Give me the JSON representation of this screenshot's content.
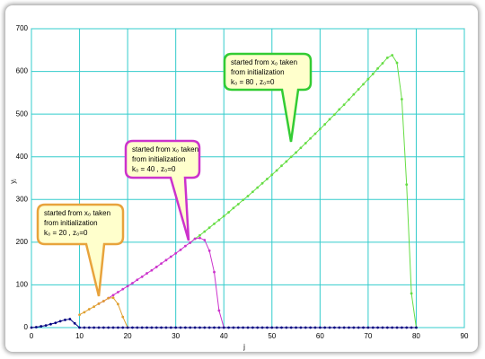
{
  "chart_data": {
    "type": "line",
    "xlabel": "j",
    "ylabel": "yⱼ",
    "xlim": [
      0,
      90
    ],
    "xticks": [
      0,
      10,
      20,
      30,
      40,
      50,
      60,
      70,
      80,
      90
    ],
    "ylim": [
      0,
      700
    ],
    "yticks": [
      0,
      100,
      200,
      300,
      400,
      500,
      600,
      700
    ],
    "grid": true,
    "grid_color": "#33cccc",
    "series": [
      {
        "color": "#000080",
        "x": [
          0,
          1,
          2,
          3,
          4,
          5,
          6,
          7,
          8,
          9,
          10,
          11,
          12,
          13,
          14,
          15,
          16,
          17,
          18,
          19,
          20,
          21,
          22,
          23,
          24,
          25,
          26,
          27,
          28,
          29,
          30,
          31,
          32,
          33,
          34,
          35,
          36,
          37,
          38,
          39,
          40,
          41,
          42,
          43,
          44,
          45,
          46,
          47,
          48,
          49,
          50,
          51,
          52,
          53,
          54,
          55,
          56,
          57,
          58,
          59,
          60,
          61,
          62,
          63,
          64,
          65,
          66,
          67,
          68,
          69,
          70,
          71,
          72,
          73,
          74,
          75,
          76,
          77,
          78,
          79,
          80
        ],
        "values": [
          0,
          1,
          3,
          5,
          8,
          11,
          15,
          18,
          20,
          10,
          0,
          0,
          0,
          0,
          0,
          0,
          0,
          0,
          0,
          0,
          0,
          0,
          0,
          0,
          0,
          0,
          0,
          0,
          0,
          0,
          0,
          0,
          0,
          0,
          0,
          0,
          0,
          0,
          0,
          0,
          0,
          0,
          0,
          0,
          0,
          0,
          0,
          0,
          0,
          0,
          0,
          0,
          0,
          0,
          0,
          0,
          0,
          0,
          0,
          0,
          0,
          0,
          0,
          0,
          0,
          0,
          0,
          0,
          0,
          0,
          0,
          0,
          0,
          0,
          0,
          0,
          0,
          0,
          0,
          0,
          0
        ]
      },
      {
        "color": "#e0a030",
        "x": [
          10,
          11,
          12,
          13,
          14,
          15,
          16,
          17,
          18,
          19,
          20
        ],
        "values": [
          30,
          36,
          43,
          49,
          56,
          62,
          69,
          70,
          55,
          25,
          0
        ]
      },
      {
        "color": "#cc33cc",
        "x": [
          14,
          15,
          16,
          17,
          18,
          19,
          20,
          21,
          22,
          23,
          24,
          25,
          26,
          27,
          28,
          29,
          30,
          31,
          32,
          33,
          34,
          35,
          36,
          37,
          38,
          39,
          40
        ],
        "values": [
          56,
          62,
          69,
          76,
          83,
          90,
          97,
          104,
          112,
          119,
          127,
          134,
          142,
          150,
          158,
          166,
          174,
          182,
          191,
          199,
          208,
          210,
          205,
          180,
          130,
          40,
          0
        ]
      },
      {
        "color": "#66dd44",
        "x": [
          33,
          34,
          35,
          36,
          37,
          38,
          39,
          40,
          41,
          42,
          43,
          44,
          45,
          46,
          47,
          48,
          49,
          50,
          51,
          52,
          53,
          54,
          55,
          56,
          57,
          58,
          59,
          60,
          61,
          62,
          63,
          64,
          65,
          66,
          67,
          68,
          69,
          70,
          71,
          72,
          73,
          74,
          75,
          76,
          77,
          78,
          79,
          80
        ],
        "values": [
          199,
          208,
          216,
          225,
          234,
          243,
          252,
          261,
          270,
          280,
          289,
          299,
          308,
          318,
          328,
          338,
          348,
          358,
          368,
          379,
          389,
          400,
          410,
          421,
          432,
          443,
          454,
          465,
          476,
          488,
          499,
          511,
          522,
          534,
          546,
          558,
          570,
          582,
          594,
          607,
          619,
          632,
          638,
          620,
          535,
          335,
          80,
          0
        ]
      }
    ],
    "annotations": [
      {
        "lines": [
          "started from x₀ taken",
          "from initialization",
          "k₀ = 20 , z₀=0"
        ],
        "color": "#e8a33c"
      },
      {
        "lines": [
          "started from x₀ taken",
          "from initialization",
          "k₀ = 40 , z₀=0"
        ],
        "color": "#cc33cc"
      },
      {
        "lines": [
          "started from x₀ taken",
          "from initialization",
          "k₀ = 80 , z₀=0"
        ],
        "color": "#33cc33"
      }
    ]
  }
}
